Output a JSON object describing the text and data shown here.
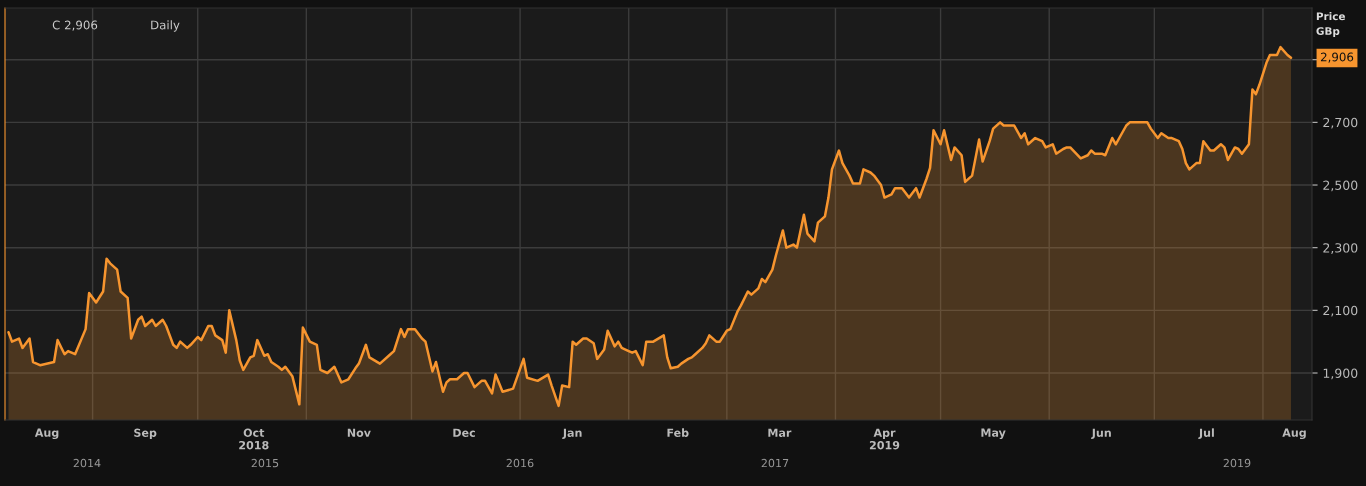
{
  "chart_data": {
    "type": "area",
    "ylabel": "Price\nGBp",
    "x": [
      "2018-08-08",
      "2018-08-09",
      "2018-08-11",
      "2018-08-12",
      "2018-08-14",
      "2018-08-15",
      "2018-08-17",
      "2018-08-21",
      "2018-08-22",
      "2018-08-24",
      "2018-08-25",
      "2018-08-27",
      "2018-08-30",
      "2018-08-31",
      "2018-09-02",
      "2018-09-04",
      "2018-09-05",
      "2018-09-06",
      "2018-09-08",
      "2018-09-09",
      "2018-09-11",
      "2018-09-12",
      "2018-09-14",
      "2018-09-15",
      "2018-09-16",
      "2018-09-18",
      "2018-09-19",
      "2018-09-21",
      "2018-09-22",
      "2018-09-24",
      "2018-09-25",
      "2018-09-26",
      "2018-09-28",
      "2018-09-29",
      "2018-10-01",
      "2018-10-02",
      "2018-10-04",
      "2018-10-05",
      "2018-10-06",
      "2018-10-08",
      "2018-10-09",
      "2018-10-10",
      "2018-10-12",
      "2018-10-13",
      "2018-10-14",
      "2018-10-16",
      "2018-10-17",
      "2018-10-18",
      "2018-10-20",
      "2018-10-21",
      "2018-10-22",
      "2018-10-24",
      "2018-10-25",
      "2018-10-26",
      "2018-10-28",
      "2018-10-30",
      "2018-10-31",
      "2018-11-02",
      "2018-11-04",
      "2018-11-05",
      "2018-11-07",
      "2018-11-09",
      "2018-11-11",
      "2018-11-13",
      "2018-11-15",
      "2018-11-16",
      "2018-11-18",
      "2018-11-19",
      "2018-11-22",
      "2018-11-25",
      "2018-11-26",
      "2018-11-28",
      "2018-11-29",
      "2018-11-30",
      "2018-12-02",
      "2018-12-04",
      "2018-12-05",
      "2018-12-07",
      "2018-12-08",
      "2018-12-10",
      "2018-12-11",
      "2018-12-12",
      "2018-12-14",
      "2018-12-16",
      "2018-12-17",
      "2018-12-19",
      "2018-12-21",
      "2018-12-22",
      "2018-12-24",
      "2018-12-25",
      "2018-12-27",
      "2018-12-30",
      "2019-01-02",
      "2019-01-03",
      "2019-01-06",
      "2019-01-09",
      "2019-01-10",
      "2019-01-12",
      "2019-01-13",
      "2019-01-15",
      "2019-01-16",
      "2019-01-17",
      "2019-01-19",
      "2019-01-20",
      "2019-01-22",
      "2019-01-23",
      "2019-01-25",
      "2019-01-26",
      "2019-01-28",
      "2019-01-29",
      "2019-01-30",
      "2019-02-01",
      "2019-02-02",
      "2019-02-03",
      "2019-02-05",
      "2019-02-06",
      "2019-02-08",
      "2019-02-11",
      "2019-02-12",
      "2019-02-13",
      "2019-02-15",
      "2019-02-16",
      "2019-02-18",
      "2019-02-19",
      "2019-02-20",
      "2019-02-22",
      "2019-02-23",
      "2019-02-24",
      "2019-02-26",
      "2019-02-27",
      "2019-03-01",
      "2019-03-02",
      "2019-03-04",
      "2019-03-05",
      "2019-03-07",
      "2019-03-08",
      "2019-03-10",
      "2019-03-11",
      "2019-03-12",
      "2019-03-14",
      "2019-03-15",
      "2019-03-17",
      "2019-03-18",
      "2019-03-20",
      "2019-03-21",
      "2019-03-23",
      "2019-03-24",
      "2019-03-26",
      "2019-03-27",
      "2019-03-29",
      "2019-03-30",
      "2019-03-31",
      "2019-04-02",
      "2019-04-03",
      "2019-04-05",
      "2019-04-06",
      "2019-04-08",
      "2019-04-09",
      "2019-04-11",
      "2019-04-12",
      "2019-04-14",
      "2019-04-15",
      "2019-04-17",
      "2019-04-18",
      "2019-04-20",
      "2019-04-22",
      "2019-04-24",
      "2019-04-25",
      "2019-04-27",
      "2019-04-28",
      "2019-04-29",
      "2019-05-01",
      "2019-05-02",
      "2019-05-04",
      "2019-05-05",
      "2019-05-07",
      "2019-05-08",
      "2019-05-10",
      "2019-05-12",
      "2019-05-13",
      "2019-05-15",
      "2019-05-16",
      "2019-05-18",
      "2019-05-19",
      "2019-05-22",
      "2019-05-24",
      "2019-05-25",
      "2019-05-26",
      "2019-05-28",
      "2019-05-30",
      "2019-05-31",
      "2019-06-02",
      "2019-06-03",
      "2019-06-05",
      "2019-06-06",
      "2019-06-07",
      "2019-06-10",
      "2019-06-12",
      "2019-06-13",
      "2019-06-14",
      "2019-06-16",
      "2019-06-17",
      "2019-06-19",
      "2019-06-20",
      "2019-06-22",
      "2019-06-23",
      "2019-06-24",
      "2019-06-29",
      "2019-06-30",
      "2019-07-02",
      "2019-07-03",
      "2019-07-05",
      "2019-07-06",
      "2019-07-08",
      "2019-07-09",
      "2019-07-10",
      "2019-07-11",
      "2019-07-13",
      "2019-07-14",
      "2019-07-15",
      "2019-07-17",
      "2019-07-18",
      "2019-07-20",
      "2019-07-21",
      "2019-07-22",
      "2019-07-24",
      "2019-07-25",
      "2019-07-26",
      "2019-07-28",
      "2019-07-29",
      "2019-07-30",
      "2019-07-31",
      "2019-08-02",
      "2019-08-03",
      "2019-08-05",
      "2019-08-06",
      "2019-08-08",
      "2019-08-09"
    ],
    "series": [
      {
        "color": "#f7952f",
        "values": [
          2030,
          2000,
          2010,
          1980,
          2010,
          1935,
          1925,
          1935,
          2005,
          1960,
          1970,
          1960,
          2040,
          2155,
          2125,
          2160,
          2265,
          2250,
          2230,
          2160,
          2140,
          2010,
          2070,
          2080,
          2050,
          2070,
          2050,
          2070,
          2050,
          1990,
          1980,
          2000,
          1980,
          1990,
          2015,
          2005,
          2050,
          2050,
          2020,
          2005,
          1965,
          2100,
          2005,
          1940,
          1910,
          1950,
          1955,
          2005,
          1955,
          1960,
          1935,
          1920,
          1910,
          1920,
          1890,
          1800,
          2045,
          2000,
          1990,
          1910,
          1900,
          1920,
          1870,
          1880,
          1915,
          1930,
          1990,
          1950,
          1930,
          1960,
          1970,
          2040,
          2015,
          2040,
          2040,
          2010,
          2000,
          1905,
          1935,
          1840,
          1870,
          1880,
          1880,
          1900,
          1900,
          1855,
          1875,
          1875,
          1835,
          1895,
          1840,
          1850,
          1945,
          1885,
          1875,
          1895,
          1860,
          1795,
          1860,
          1855,
          2000,
          1990,
          2010,
          2010,
          1995,
          1945,
          1975,
          2035,
          1985,
          2000,
          1980,
          1970,
          1965,
          1970,
          1925,
          2000,
          2000,
          2020,
          1950,
          1915,
          1920,
          1930,
          1945,
          1950,
          1960,
          1980,
          1995,
          2020,
          2000,
          2000,
          2035,
          2040,
          2095,
          2115,
          2160,
          2150,
          2170,
          2200,
          2190,
          2230,
          2275,
          2355,
          2300,
          2310,
          2300,
          2405,
          2345,
          2320,
          2380,
          2400,
          2460,
          2550,
          2610,
          2570,
          2530,
          2505,
          2505,
          2550,
          2540,
          2530,
          2500,
          2460,
          2470,
          2490,
          2490,
          2460,
          2490,
          2460,
          2520,
          2555,
          2675,
          2630,
          2675,
          2580,
          2620,
          2595,
          2510,
          2530,
          2645,
          2575,
          2640,
          2680,
          2700,
          2690,
          2690,
          2650,
          2665,
          2630,
          2650,
          2640,
          2620,
          2630,
          2600,
          2615,
          2620,
          2620,
          2585,
          2595,
          2610,
          2600,
          2600,
          2595,
          2650,
          2630,
          2670,
          2690,
          2700,
          2700,
          2680,
          2650,
          2665,
          2650,
          2650,
          2640,
          2615,
          2570,
          2550,
          2570,
          2570,
          2640,
          2610,
          2610,
          2630,
          2620,
          2580,
          2620,
          2615,
          2600,
          2630,
          2805,
          2790,
          2820,
          2890,
          2915,
          2915,
          2940,
          2915,
          2906
        ]
      }
    ],
    "ylim": [
      1750,
      3065
    ],
    "yticks": [
      {
        "value": 1900,
        "label": "1,900"
      },
      {
        "value": 2100,
        "label": "2,100"
      },
      {
        "value": 2300,
        "label": "2,300"
      },
      {
        "value": 2500,
        "label": "2,500"
      },
      {
        "value": 2700,
        "label": "2,700"
      },
      {
        "value": 2900,
        "label": null
      }
    ],
    "xlim": [
      "2018-08-07",
      "2019-08-15"
    ],
    "xticks": [
      {
        "value": "2018-08-19",
        "label": "Aug"
      },
      {
        "value": "2018-09-01",
        "label": null
      },
      {
        "value": "2018-09-16",
        "label": "Sep"
      },
      {
        "value": "2018-10-01",
        "label": null
      },
      {
        "value": "2018-10-17",
        "label": "Oct\n2018"
      },
      {
        "value": "2018-11-01",
        "label": null
      },
      {
        "value": "2018-11-16",
        "label": "Nov"
      },
      {
        "value": "2018-12-01",
        "label": null
      },
      {
        "value": "2018-12-16",
        "label": "Dec"
      },
      {
        "value": "2019-01-01",
        "label": null
      },
      {
        "value": "2019-01-16",
        "label": "Jan"
      },
      {
        "value": "2019-02-01",
        "label": null
      },
      {
        "value": "2019-02-15",
        "label": "Feb"
      },
      {
        "value": "2019-03-01",
        "label": null
      },
      {
        "value": "2019-03-16",
        "label": "Mar"
      },
      {
        "value": "2019-04-01",
        "label": null
      },
      {
        "value": "2019-04-15",
        "label": "Apr\n2019"
      },
      {
        "value": "2019-05-01",
        "label": null
      },
      {
        "value": "2019-05-16",
        "label": "May"
      },
      {
        "value": "2019-06-01",
        "label": null
      },
      {
        "value": "2019-06-16",
        "label": "Jun"
      },
      {
        "value": "2019-07-01",
        "label": null
      },
      {
        "value": "2019-07-16",
        "label": "Jul"
      },
      {
        "value": "2019-08-01",
        "label": null
      },
      {
        "value": "2019-08-10",
        "label": "Aug"
      }
    ],
    "grid": true,
    "annotations": [
      "C 2,906",
      "Daily",
      "2014",
      "2015",
      "2016",
      "2017",
      "2019",
      "2,906"
    ]
  }
}
